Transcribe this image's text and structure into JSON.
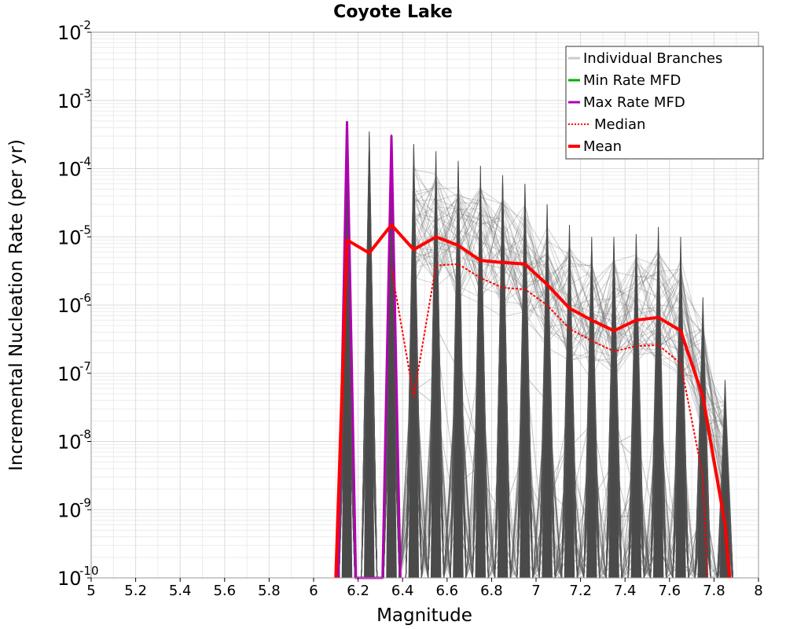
{
  "chart_data": {
    "type": "line",
    "title": "Coyote Lake",
    "xlabel": "Magnitude",
    "ylabel": "Incremental Nucleation Rate (per yr)",
    "xlim": [
      5,
      8
    ],
    "ylim": [
      1e-10,
      0.01
    ],
    "yscale": "log",
    "grid": true,
    "legend_position": "top-right",
    "xticks": [
      "5",
      "5.2",
      "5.4",
      "5.6",
      "5.8",
      "6",
      "6.2",
      "6.4",
      "6.6",
      "6.8",
      "7",
      "7.2",
      "7.4",
      "7.6",
      "7.8",
      "8"
    ],
    "yticks": [
      {
        "base": "10",
        "exp": "-10"
      },
      {
        "base": "10",
        "exp": "-9"
      },
      {
        "base": "10",
        "exp": "-8"
      },
      {
        "base": "10",
        "exp": "-7"
      },
      {
        "base": "10",
        "exp": "-6"
      },
      {
        "base": "10",
        "exp": "-5"
      },
      {
        "base": "10",
        "exp": "-4"
      },
      {
        "base": "10",
        "exp": "-3"
      },
      {
        "base": "10",
        "exp": "-2"
      }
    ],
    "legend": [
      {
        "label": "Individual Branches",
        "color": "#cccccc",
        "style": "solid"
      },
      {
        "label": "Min Rate MFD",
        "color": "#00b000",
        "style": "solid"
      },
      {
        "label": "Max Rate MFD",
        "color": "#b000b0",
        "style": "solid"
      },
      {
        "label": "Median",
        "color": "#ff0000",
        "style": "dotted"
      },
      {
        "label": "Mean",
        "color": "#ff0000",
        "style": "solid-thick"
      }
    ],
    "series": [
      {
        "name": "Mean",
        "color": "#ff0000",
        "x": [
          6.1,
          6.15,
          6.25,
          6.35,
          6.45,
          6.55,
          6.65,
          6.75,
          6.85,
          6.95,
          7.05,
          7.15,
          7.25,
          7.35,
          7.45,
          7.55,
          7.65,
          7.75,
          7.85,
          7.87
        ],
        "y": [
          1e-10,
          9e-06,
          5.8e-06,
          1.5e-05,
          6.5e-06,
          1e-05,
          7.5e-06,
          4.5e-06,
          4.2e-06,
          4e-06,
          2e-06,
          9e-07,
          6e-07,
          4.2e-07,
          6e-07,
          6.6e-07,
          4.2e-07,
          4.5e-08,
          6e-10,
          1e-10
        ]
      },
      {
        "name": "Median",
        "color": "#ff0000",
        "x": [
          6.35,
          6.45,
          6.55,
          6.65,
          6.75,
          6.85,
          6.95,
          7.05,
          7.15,
          7.25,
          7.35,
          7.45,
          7.55,
          7.65,
          7.75,
          7.77
        ],
        "y": [
          3.5e-06,
          4.5e-08,
          3.8e-06,
          4e-06,
          2.5e-06,
          1.8e-06,
          1.7e-06,
          1e-06,
          4.5e-07,
          3e-07,
          2.1e-07,
          2.5e-07,
          2.6e-07,
          1.4e-07,
          3e-09,
          1e-10
        ]
      },
      {
        "name": "Max Rate MFD",
        "color": "#b000b0",
        "x": [
          6.11,
          6.15,
          6.19,
          6.31,
          6.35,
          6.39
        ],
        "y": [
          1e-10,
          0.00048,
          1e-10,
          1e-10,
          0.0003,
          1e-10
        ]
      },
      {
        "name": "Min Rate MFD",
        "color": "#00b000",
        "x": [],
        "y": []
      }
    ],
    "branch_peaks": [
      {
        "x": 6.15,
        "y": 0.00048
      },
      {
        "x": 6.25,
        "y": 0.00035
      },
      {
        "x": 6.35,
        "y": 0.00032
      },
      {
        "x": 6.45,
        "y": 0.00023
      },
      {
        "x": 6.55,
        "y": 0.00018
      },
      {
        "x": 6.65,
        "y": 0.00013
      },
      {
        "x": 6.75,
        "y": 0.00011
      },
      {
        "x": 6.85,
        "y": 8e-05
      },
      {
        "x": 6.95,
        "y": 6e-05
      },
      {
        "x": 7.05,
        "y": 3e-05
      },
      {
        "x": 7.15,
        "y": 1.5e-05
      },
      {
        "x": 7.25,
        "y": 1e-05
      },
      {
        "x": 7.35,
        "y": 1e-05
      },
      {
        "x": 7.45,
        "y": 1.1e-05
      },
      {
        "x": 7.55,
        "y": 1.4e-05
      },
      {
        "x": 7.65,
        "y": 1e-05
      },
      {
        "x": 7.75,
        "y": 1.3e-06
      },
      {
        "x": 7.85,
        "y": 8e-08
      }
    ]
  }
}
